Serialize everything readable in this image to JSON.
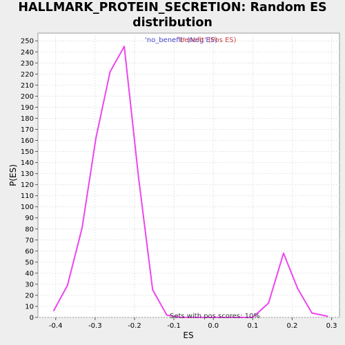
{
  "chart_data": {
    "type": "line",
    "title_lines": [
      "HALLMARK_PROTEIN_SECRETION: Random ES",
      "distribution"
    ],
    "xlabel": "ES",
    "ylabel": "P(ES)",
    "xlim": [
      -0.445,
      0.32
    ],
    "ylim": [
      0,
      257
    ],
    "x_ticks": [
      -0.4,
      -0.3,
      -0.2,
      -0.1,
      0.0,
      0.1,
      0.2,
      0.3
    ],
    "x_tick_labels": [
      "-0.4",
      "-0.3",
      "-0.2",
      "-0.1",
      "0.0",
      "0.1",
      "0.2",
      "0.3"
    ],
    "y_ticks": [
      0,
      10,
      20,
      30,
      40,
      50,
      60,
      70,
      80,
      90,
      100,
      110,
      120,
      130,
      140,
      150,
      160,
      170,
      180,
      190,
      200,
      210,
      220,
      230,
      240,
      250
    ],
    "y_tick_labels": [
      "0",
      "10",
      "20",
      "30",
      "40",
      "50",
      "60",
      "70",
      "80",
      "90",
      "100",
      "110",
      "120",
      "130",
      "140",
      "150",
      "160",
      "170",
      "180",
      "190",
      "200",
      "210",
      "220",
      "230",
      "240",
      "250"
    ],
    "grid": true,
    "series": [
      {
        "color": "#ee44ee",
        "x": [
          -0.405,
          -0.37,
          -0.333,
          -0.298,
          -0.262,
          -0.226,
          -0.19,
          -0.154,
          -0.118,
          -0.082,
          -0.046,
          -0.01,
          0.026,
          0.063,
          0.1,
          0.14,
          0.178,
          0.214,
          0.25,
          0.29
        ],
        "y": [
          6,
          29,
          81,
          162,
          222,
          245,
          127,
          25,
          2,
          0,
          0,
          0,
          0,
          0,
          0,
          13,
          58,
          26,
          4,
          1
        ]
      }
    ],
    "legend": [
      {
        "text": "'no_benefit' (Neg ES)",
        "color": "#4444cc"
      },
      {
        "text": "'benefit' (Pos ES)",
        "color": "#cc4444"
      }
    ],
    "legend_placement": "top-center",
    "annotation": "Sets with pos scores: 10%"
  }
}
